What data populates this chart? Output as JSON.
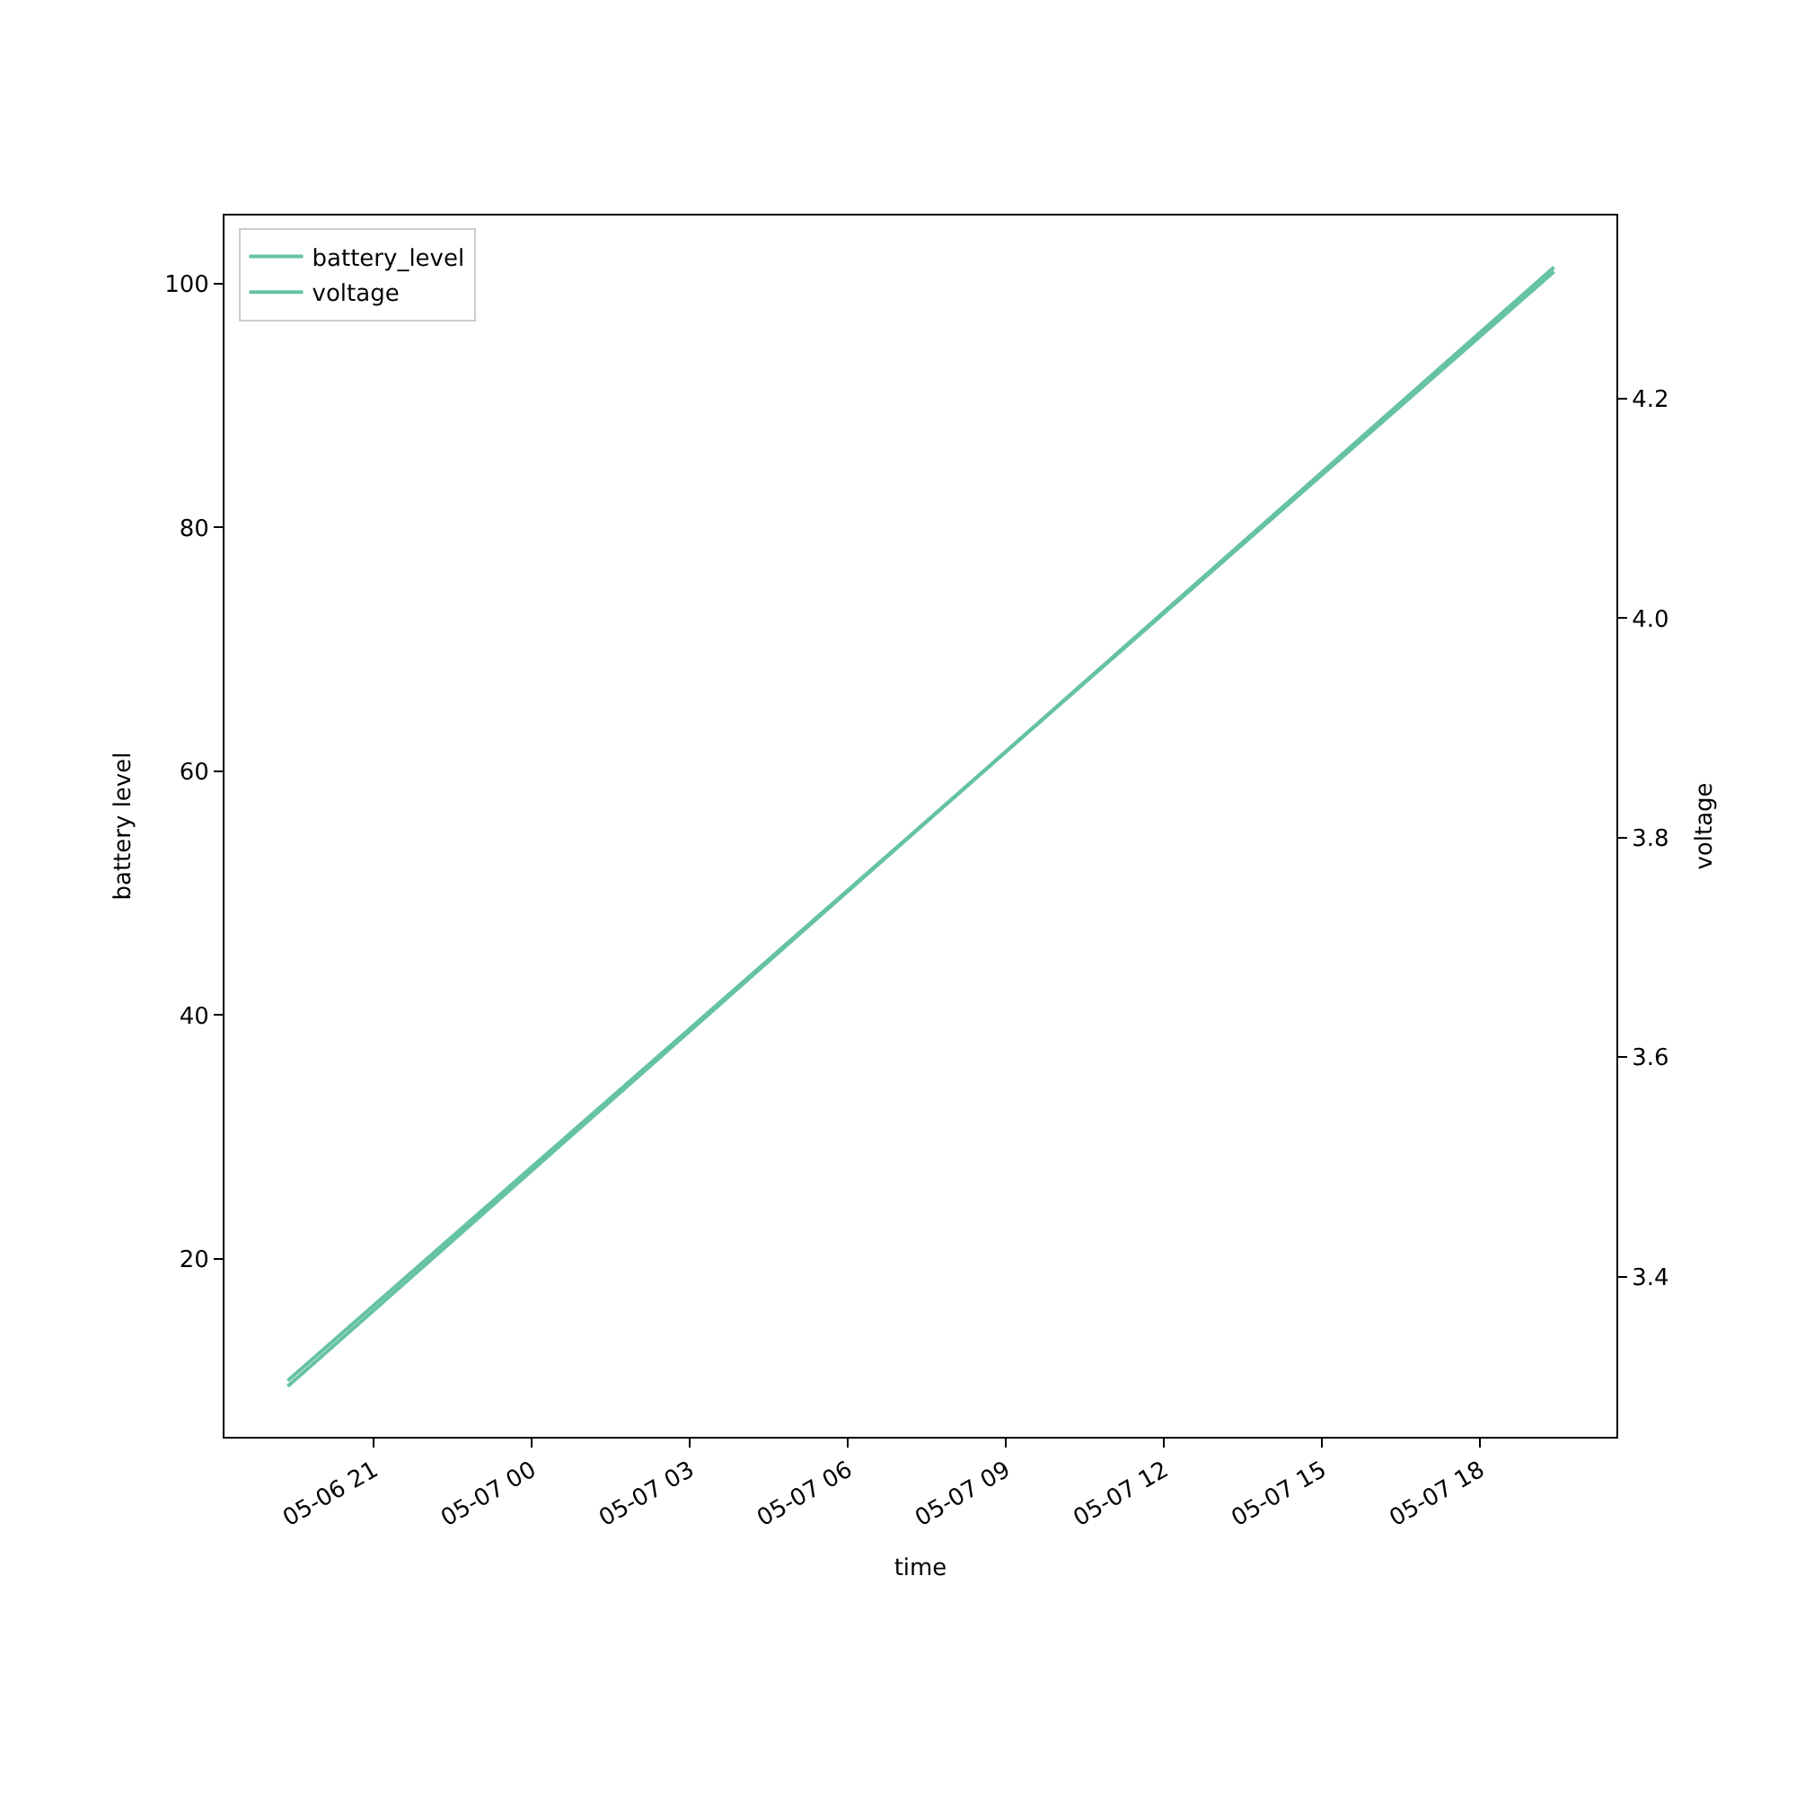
{
  "chart_data": {
    "type": "line",
    "xlabel": "time",
    "ylabel": "battery level",
    "y2label": "voltage",
    "x": [
      "--05-06T19:22",
      "--05-07T19:24"
    ],
    "series": [
      {
        "name": "battery_level",
        "color": "#66c2a5",
        "values": [
          10,
          101
        ]
      },
      {
        "name": "voltage",
        "color": "#66c2a5",
        "values": [
          3.3,
          4.32
        ],
        "axis": "y2"
      }
    ],
    "xlim": [
      "--05-06T18:10",
      "--05-07T20:35"
    ],
    "xticks": [
      {
        "value": "--05-06T21:00",
        "label": "05-06 21"
      },
      {
        "value": "--05-07T00:00",
        "label": "05-07 00"
      },
      {
        "value": "--05-07T03:00",
        "label": "05-07 03"
      },
      {
        "value": "--05-07T06:00",
        "label": "05-07 06"
      },
      {
        "value": "--05-07T09:00",
        "label": "05-07 09"
      },
      {
        "value": "--05-07T12:00",
        "label": "05-07 12"
      },
      {
        "value": "--05-07T15:00",
        "label": "05-07 15"
      },
      {
        "value": "--05-07T18:00",
        "label": "05-07 18"
      }
    ],
    "ylim": [
      5.4,
      105.6
    ],
    "yticks": [
      20,
      40,
      60,
      80,
      100
    ],
    "y2lim": [
      3.254,
      4.367
    ],
    "y2ticks": [
      3.4,
      3.6,
      3.8,
      {
        "value": 4,
        "label": "4.0"
      },
      4.2
    ],
    "legend": "top left",
    "line_style": "solid",
    "marker": "none"
  }
}
